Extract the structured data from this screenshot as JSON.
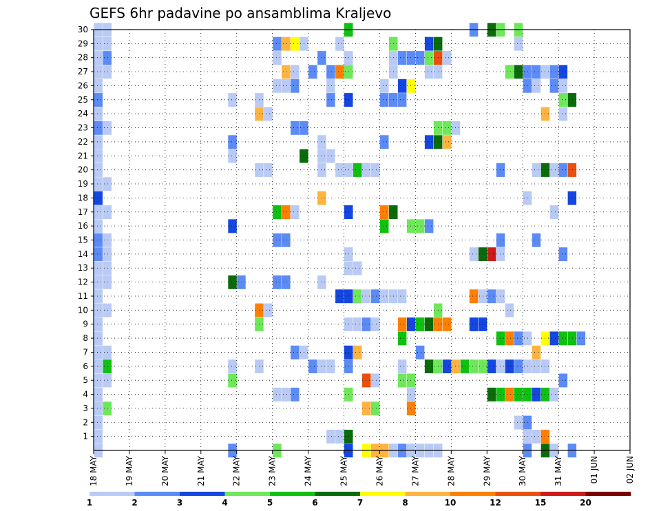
{
  "chart_data": {
    "type": "heatmap",
    "title": "GEFS 6hr padavine po ansamblima Kraljevo",
    "xlabel": "",
    "ylabel": "",
    "x_ticks": [
      "18 MAY",
      "19 MAY",
      "20 MAY",
      "21 MAY",
      "22 MAY",
      "23 MAY",
      "24 MAY",
      "25 MAY",
      "26 MAY",
      "27 MAY",
      "28 MAY",
      "29 MAY",
      "30 MAY",
      "31 MAY",
      "01 JUN",
      "02 JUN"
    ],
    "x_range_steps": [
      0,
      60
    ],
    "y_ticks": [
      1,
      2,
      3,
      4,
      5,
      6,
      7,
      8,
      9,
      10,
      11,
      12,
      13,
      14,
      15,
      16,
      17,
      18,
      19,
      20,
      21,
      22,
      23,
      24,
      25,
      26,
      27,
      28,
      29,
      30
    ],
    "y_range": [
      0,
      30
    ],
    "grid": true,
    "grid_style": "dotted",
    "colorbar": {
      "labels": [
        "1",
        "2",
        "3",
        "4",
        "5",
        "6",
        "7",
        "8",
        "10",
        "12",
        "15",
        "20"
      ],
      "colors": [
        "#b9caf5",
        "#5c8bf5",
        "#1446e0",
        "#6ee85a",
        "#10c010",
        "#0b6b0b",
        "#ffff00",
        "#ffb340",
        "#ff8000",
        "#e85010",
        "#cc1a1a",
        "#7a0000"
      ],
      "legend_placement": "bottom"
    },
    "cells_format": "[time_step_6h_from_18_MAY_00z, ensemble_member, color_class_index]",
    "cells": [
      [
        0,
        30,
        0
      ],
      [
        1,
        30,
        0
      ],
      [
        0,
        29,
        0
      ],
      [
        1,
        29,
        0
      ],
      [
        0,
        28,
        0
      ],
      [
        1,
        28,
        1
      ],
      [
        0,
        27,
        0
      ],
      [
        1,
        27,
        0
      ],
      [
        0,
        26,
        0
      ],
      [
        0,
        25,
        1
      ],
      [
        0,
        24,
        0
      ],
      [
        0,
        23,
        1
      ],
      [
        1,
        23,
        0
      ],
      [
        0,
        22,
        0
      ],
      [
        0,
        21,
        0
      ],
      [
        0,
        20,
        0
      ],
      [
        0,
        19,
        0
      ],
      [
        1,
        19,
        0
      ],
      [
        0,
        18,
        2
      ],
      [
        0,
        17,
        0
      ],
      [
        1,
        17,
        0
      ],
      [
        0,
        16,
        0
      ],
      [
        0,
        15,
        1
      ],
      [
        1,
        15,
        0
      ],
      [
        0,
        14,
        1
      ],
      [
        1,
        14,
        0
      ],
      [
        0,
        13,
        0
      ],
      [
        1,
        13,
        0
      ],
      [
        0,
        12,
        0
      ],
      [
        1,
        12,
        0
      ],
      [
        0,
        11,
        0
      ],
      [
        0,
        10,
        0
      ],
      [
        1,
        10,
        0
      ],
      [
        0,
        9,
        0
      ],
      [
        0,
        8,
        0
      ],
      [
        0,
        7,
        0
      ],
      [
        1,
        7,
        0
      ],
      [
        0,
        6,
        0
      ],
      [
        1,
        6,
        4
      ],
      [
        0,
        5,
        0
      ],
      [
        1,
        5,
        0
      ],
      [
        0,
        4,
        0
      ],
      [
        0,
        3,
        0
      ],
      [
        1,
        3,
        3
      ],
      [
        0,
        2,
        0
      ],
      [
        0,
        1,
        0
      ],
      [
        0,
        0,
        0
      ],
      [
        15,
        25,
        0
      ],
      [
        15,
        22,
        1
      ],
      [
        15,
        21,
        0
      ],
      [
        15,
        12,
        5
      ],
      [
        16,
        12,
        1
      ],
      [
        15,
        16,
        2
      ],
      [
        15,
        6,
        0
      ],
      [
        15,
        5,
        3
      ],
      [
        15,
        0,
        1
      ],
      [
        18,
        25,
        0
      ],
      [
        18,
        24,
        7
      ],
      [
        19,
        24,
        0
      ],
      [
        18,
        20,
        0
      ],
      [
        19,
        20,
        0
      ],
      [
        18,
        10,
        8
      ],
      [
        19,
        10,
        0
      ],
      [
        18,
        9,
        3
      ],
      [
        18,
        6,
        0
      ],
      [
        20,
        29,
        1
      ],
      [
        21,
        29,
        7
      ],
      [
        22,
        29,
        6
      ],
      [
        23,
        29,
        0
      ],
      [
        20,
        28,
        0
      ],
      [
        20,
        26,
        0
      ],
      [
        21,
        26,
        0
      ],
      [
        22,
        26,
        1
      ],
      [
        21,
        27,
        7
      ],
      [
        22,
        27,
        0
      ],
      [
        22,
        23,
        1
      ],
      [
        23,
        23,
        1
      ],
      [
        23,
        21,
        5
      ],
      [
        20,
        17,
        4
      ],
      [
        21,
        17,
        8
      ],
      [
        22,
        17,
        0
      ],
      [
        20,
        15,
        1
      ],
      [
        21,
        15,
        1
      ],
      [
        20,
        12,
        1
      ],
      [
        21,
        12,
        1
      ],
      [
        20,
        4,
        0
      ],
      [
        21,
        4,
        0
      ],
      [
        22,
        4,
        1
      ],
      [
        22,
        7,
        1
      ],
      [
        23,
        7,
        0
      ],
      [
        20,
        0,
        3
      ],
      [
        25,
        28,
        1
      ],
      [
        24,
        27,
        1
      ],
      [
        26,
        27,
        1
      ],
      [
        27,
        27,
        8
      ],
      [
        28,
        27,
        3
      ],
      [
        26,
        26,
        0
      ],
      [
        26,
        25,
        1
      ],
      [
        25,
        22,
        0
      ],
      [
        25,
        21,
        0
      ],
      [
        26,
        21,
        0
      ],
      [
        25,
        20,
        0
      ],
      [
        27,
        20,
        0
      ],
      [
        25,
        18,
        7
      ],
      [
        25,
        12,
        0
      ],
      [
        24,
        6,
        1
      ],
      [
        25,
        6,
        0
      ],
      [
        26,
        6,
        0
      ],
      [
        26,
        1,
        0
      ],
      [
        27,
        1,
        0
      ],
      [
        28,
        1,
        5
      ],
      [
        28,
        0,
        2
      ],
      [
        28,
        30,
        4
      ],
      [
        27,
        29,
        0
      ],
      [
        28,
        28,
        0
      ],
      [
        28,
        25,
        2
      ],
      [
        28,
        20,
        0
      ],
      [
        29,
        20,
        4
      ],
      [
        30,
        20,
        0
      ],
      [
        31,
        20,
        0
      ],
      [
        28,
        17,
        2
      ],
      [
        28,
        14,
        0
      ],
      [
        28,
        13,
        0
      ],
      [
        29,
        13,
        0
      ],
      [
        27,
        11,
        2
      ],
      [
        28,
        11,
        2
      ],
      [
        29,
        11,
        3
      ],
      [
        30,
        11,
        0
      ],
      [
        31,
        11,
        1
      ],
      [
        32,
        11,
        0
      ],
      [
        28,
        9,
        0
      ],
      [
        29,
        9,
        0
      ],
      [
        30,
        9,
        1
      ],
      [
        31,
        9,
        0
      ],
      [
        28,
        7,
        2
      ],
      [
        29,
        7,
        7
      ],
      [
        28,
        6,
        1
      ],
      [
        30,
        5,
        9
      ],
      [
        31,
        5,
        0
      ],
      [
        28,
        4,
        3
      ],
      [
        30,
        3,
        7
      ],
      [
        31,
        3,
        3
      ],
      [
        30,
        0,
        6
      ],
      [
        31,
        0,
        7
      ],
      [
        32,
        0,
        7
      ],
      [
        33,
        0,
        0
      ],
      [
        34,
        0,
        1
      ],
      [
        35,
        0,
        0
      ],
      [
        33,
        29,
        3
      ],
      [
        34,
        28,
        1
      ],
      [
        35,
        28,
        1
      ],
      [
        33,
        28,
        0
      ],
      [
        33,
        27,
        0
      ],
      [
        34,
        26,
        2
      ],
      [
        35,
        26,
        6
      ],
      [
        32,
        26,
        0
      ],
      [
        32,
        25,
        1
      ],
      [
        33,
        25,
        1
      ],
      [
        34,
        25,
        1
      ],
      [
        32,
        22,
        1
      ],
      [
        32,
        17,
        8
      ],
      [
        33,
        17,
        5
      ],
      [
        32,
        16,
        4
      ],
      [
        35,
        16,
        3
      ],
      [
        36,
        16,
        3
      ],
      [
        37,
        16,
        1
      ],
      [
        33,
        11,
        0
      ],
      [
        34,
        11,
        0
      ],
      [
        34,
        9,
        8
      ],
      [
        35,
        9,
        2
      ],
      [
        36,
        9,
        4
      ],
      [
        34,
        8,
        4
      ],
      [
        34,
        6,
        0
      ],
      [
        34,
        5,
        3
      ],
      [
        35,
        5,
        3
      ],
      [
        35,
        4,
        0
      ],
      [
        35,
        3,
        8
      ],
      [
        36,
        0,
        0
      ],
      [
        37,
        0,
        0
      ],
      [
        38,
        0,
        0
      ],
      [
        37,
        29,
        2
      ],
      [
        38,
        29,
        5
      ],
      [
        37,
        28,
        3
      ],
      [
        38,
        28,
        9
      ],
      [
        39,
        28,
        0
      ],
      [
        36,
        28,
        1
      ],
      [
        38,
        27,
        0
      ],
      [
        37,
        27,
        0
      ],
      [
        37,
        22,
        2
      ],
      [
        38,
        22,
        5
      ],
      [
        39,
        22,
        7
      ],
      [
        38,
        23,
        3
      ],
      [
        39,
        23,
        3
      ],
      [
        40,
        23,
        0
      ],
      [
        38,
        10,
        3
      ],
      [
        37,
        9,
        5
      ],
      [
        38,
        9,
        8
      ],
      [
        39,
        9,
        8
      ],
      [
        36,
        7,
        1
      ],
      [
        37,
        6,
        5
      ],
      [
        38,
        6,
        3
      ],
      [
        39,
        6,
        2
      ],
      [
        40,
        6,
        7
      ],
      [
        41,
        6,
        4
      ],
      [
        42,
        6,
        3
      ],
      [
        43,
        6,
        3
      ],
      [
        44,
        6,
        2
      ],
      [
        45,
        6,
        0
      ],
      [
        42,
        30,
        1
      ],
      [
        44,
        30,
        5
      ],
      [
        45,
        30,
        3
      ],
      [
        47,
        30,
        3
      ],
      [
        47,
        29,
        0
      ],
      [
        46,
        27,
        3
      ],
      [
        47,
        27,
        5
      ],
      [
        48,
        27,
        1
      ],
      [
        49,
        27,
        1
      ],
      [
        50,
        27,
        0
      ],
      [
        51,
        27,
        1
      ],
      [
        52,
        27,
        2
      ],
      [
        52,
        26,
        0
      ],
      [
        51,
        26,
        1
      ],
      [
        49,
        26,
        0
      ],
      [
        48,
        26,
        1
      ],
      [
        52,
        25,
        3
      ],
      [
        53,
        25,
        5
      ],
      [
        52,
        24,
        0
      ],
      [
        50,
        24,
        7
      ],
      [
        45,
        20,
        1
      ],
      [
        49,
        20,
        0
      ],
      [
        50,
        20,
        5
      ],
      [
        51,
        20,
        0
      ],
      [
        52,
        20,
        1
      ],
      [
        53,
        20,
        9
      ],
      [
        53,
        18,
        2
      ],
      [
        48,
        18,
        0
      ],
      [
        51,
        17,
        0
      ],
      [
        49,
        15,
        1
      ],
      [
        45,
        15,
        1
      ],
      [
        42,
        14,
        0
      ],
      [
        43,
        14,
        5
      ],
      [
        44,
        14,
        10
      ],
      [
        45,
        14,
        0
      ],
      [
        52,
        14,
        1
      ],
      [
        44,
        11,
        1
      ],
      [
        45,
        11,
        0
      ],
      [
        42,
        11,
        8
      ],
      [
        43,
        11,
        0
      ],
      [
        46,
        10,
        0
      ],
      [
        42,
        9,
        2
      ],
      [
        43,
        9,
        2
      ],
      [
        45,
        8,
        4
      ],
      [
        46,
        8,
        8
      ],
      [
        47,
        8,
        1
      ],
      [
        48,
        8,
        0
      ],
      [
        50,
        8,
        6
      ],
      [
        51,
        8,
        2
      ],
      [
        52,
        8,
        4
      ],
      [
        53,
        8,
        4
      ],
      [
        54,
        8,
        1
      ],
      [
        49,
        7,
        7
      ],
      [
        46,
        6,
        2
      ],
      [
        47,
        6,
        1
      ],
      [
        48,
        6,
        0
      ],
      [
        49,
        6,
        0
      ],
      [
        50,
        6,
        0
      ],
      [
        52,
        5,
        1
      ],
      [
        44,
        4,
        5
      ],
      [
        45,
        4,
        4
      ],
      [
        46,
        4,
        8
      ],
      [
        47,
        4,
        4
      ],
      [
        48,
        4,
        4
      ],
      [
        49,
        4,
        2
      ],
      [
        50,
        4,
        4
      ],
      [
        51,
        4,
        0
      ],
      [
        47,
        2,
        0
      ],
      [
        48,
        2,
        1
      ],
      [
        48,
        1,
        0
      ],
      [
        49,
        1,
        0
      ],
      [
        50,
        1,
        8
      ],
      [
        48,
        0,
        1
      ],
      [
        50,
        0,
        5
      ],
      [
        51,
        0,
        0
      ],
      [
        53,
        0,
        1
      ]
    ]
  }
}
